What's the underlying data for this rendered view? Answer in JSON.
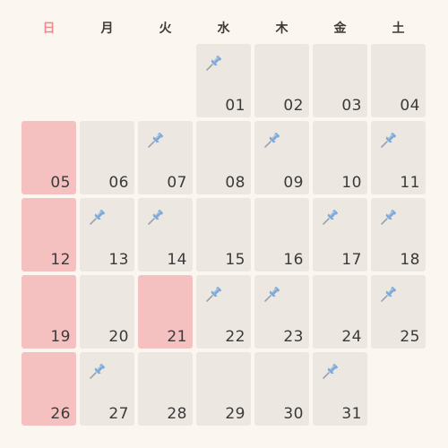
{
  "weekdays": [
    "日",
    "月",
    "火",
    "水",
    "木",
    "金",
    "土"
  ],
  "colors": {
    "background": "#fbf7f0",
    "cell": "#ece8e1",
    "highlight": "#f5c1c0",
    "sunday_header": "#e98e8e",
    "pin_head": "#7ea8d8",
    "pin_needle": "#9aa3ad"
  },
  "pin_icon": "pushpin-icon",
  "leading_blank_days": 3,
  "days": [
    {
      "label": "01",
      "pinned": true,
      "highlighted": false
    },
    {
      "label": "02",
      "pinned": false,
      "highlighted": false
    },
    {
      "label": "03",
      "pinned": false,
      "highlighted": false
    },
    {
      "label": "04",
      "pinned": false,
      "highlighted": false
    },
    {
      "label": "05",
      "pinned": false,
      "highlighted": true
    },
    {
      "label": "06",
      "pinned": false,
      "highlighted": false
    },
    {
      "label": "07",
      "pinned": true,
      "highlighted": false
    },
    {
      "label": "08",
      "pinned": false,
      "highlighted": false
    },
    {
      "label": "09",
      "pinned": true,
      "highlighted": false
    },
    {
      "label": "10",
      "pinned": false,
      "highlighted": false
    },
    {
      "label": "11",
      "pinned": true,
      "highlighted": false
    },
    {
      "label": "12",
      "pinned": false,
      "highlighted": true
    },
    {
      "label": "13",
      "pinned": true,
      "highlighted": false
    },
    {
      "label": "14",
      "pinned": true,
      "highlighted": false
    },
    {
      "label": "15",
      "pinned": false,
      "highlighted": false
    },
    {
      "label": "16",
      "pinned": false,
      "highlighted": false
    },
    {
      "label": "17",
      "pinned": true,
      "highlighted": false
    },
    {
      "label": "18",
      "pinned": true,
      "highlighted": false
    },
    {
      "label": "19",
      "pinned": false,
      "highlighted": true
    },
    {
      "label": "20",
      "pinned": false,
      "highlighted": false
    },
    {
      "label": "21",
      "pinned": false,
      "highlighted": true
    },
    {
      "label": "22",
      "pinned": true,
      "highlighted": false
    },
    {
      "label": "23",
      "pinned": true,
      "highlighted": false
    },
    {
      "label": "24",
      "pinned": false,
      "highlighted": false
    },
    {
      "label": "25",
      "pinned": true,
      "highlighted": false
    },
    {
      "label": "26",
      "pinned": false,
      "highlighted": true
    },
    {
      "label": "27",
      "pinned": true,
      "highlighted": false
    },
    {
      "label": "28",
      "pinned": false,
      "highlighted": false
    },
    {
      "label": "29",
      "pinned": false,
      "highlighted": false
    },
    {
      "label": "30",
      "pinned": false,
      "highlighted": false
    },
    {
      "label": "31",
      "pinned": true,
      "highlighted": false
    }
  ]
}
